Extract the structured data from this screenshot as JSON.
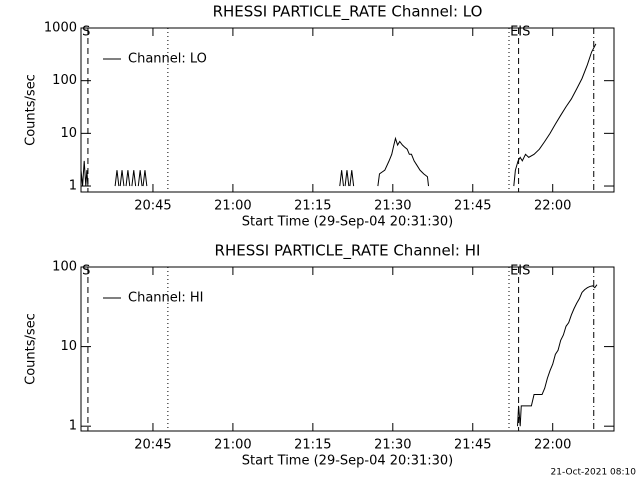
{
  "chart_data": [
    {
      "type": "line",
      "title": "RHESSI PARTICLE_RATE Channel: LO",
      "xlabel": "Start Time (29-Sep-04 20:31:30)",
      "ylabel": "Counts/sec",
      "log_y": true,
      "legend": "upper left",
      "xlim": [
        0,
        100
      ],
      "ylim": [
        0.77,
        1000
      ],
      "xticks": [
        {
          "value": 13.5,
          "label": "20:45"
        },
        {
          "value": 28.5,
          "label": "21:00"
        },
        {
          "value": 43.5,
          "label": "21:15"
        },
        {
          "value": 58.5,
          "label": "21:30"
        },
        {
          "value": 73.5,
          "label": "21:45"
        },
        {
          "value": 88.5,
          "label": "22:00"
        }
      ],
      "yticks": [
        1,
        10,
        100,
        1000
      ],
      "markers": [
        {
          "x": 1.3,
          "style": "dashed"
        },
        {
          "x": 16.3,
          "style": "dotted"
        },
        {
          "x": 80.3,
          "style": "dotted"
        },
        {
          "x": 82.1,
          "style": "dashed"
        },
        {
          "x": 96.2,
          "style": "dashdot"
        }
      ],
      "annotations": [
        {
          "text": "S",
          "x": 0.2
        },
        {
          "text": "EIS",
          "x": 80.5
        }
      ],
      "x": [
        0,
        0.3,
        0.6,
        0.9,
        1.1,
        1.3,
        1.5,
        6.4,
        6.75,
        7.1,
        7.2,
        7.35,
        7.7,
        8.05,
        8.3,
        8.45,
        8.8,
        9.15,
        9.4,
        9.55,
        9.9,
        10.25,
        10.5,
        10.75,
        11.1,
        11.45,
        11.55,
        11.65,
        12,
        12.35,
        12.6,
        48.55,
        48.9,
        49.25,
        49.4,
        49.55,
        49.9,
        50.25,
        50.35,
        50.45,
        50.8,
        51.15,
        51.5,
        55.7,
        56,
        57,
        57.8,
        58.3,
        58.7,
        59,
        59.4,
        59.8,
        60.3,
        60.7,
        61.2,
        61.6,
        62,
        62.5,
        63,
        63.6,
        64.3,
        65,
        65.2,
        65.5,
        81.2,
        81.5,
        82,
        82.4,
        82.8,
        83.4,
        84,
        85,
        86,
        87,
        88,
        89,
        90,
        91,
        92,
        93,
        94,
        95,
        95.8,
        96.6
      ],
      "series": [
        {
          "name": "Channel: LO",
          "color": "#000000",
          "values": [
            2,
            1,
            3,
            1,
            2,
            1,
            null,
            1,
            2,
            1,
            null,
            1,
            2,
            1,
            null,
            1,
            2,
            1,
            null,
            1,
            2,
            1,
            null,
            1,
            2,
            1,
            null,
            1,
            2,
            1,
            null,
            1,
            2,
            1,
            null,
            1,
            2,
            1,
            null,
            1,
            2,
            1,
            null,
            1,
            1.7,
            2,
            3,
            4,
            6,
            8,
            6,
            7,
            6,
            5.5,
            5,
            4,
            4,
            3,
            2.5,
            2,
            1.7,
            1.5,
            1,
            null,
            1,
            2,
            3,
            3.5,
            3,
            4,
            3.5,
            4,
            5,
            7,
            10,
            15,
            22,
            32,
            45,
            70,
            110,
            200,
            350,
            500
          ]
        }
      ]
    },
    {
      "type": "line",
      "title": "RHESSI PARTICLE_RATE Channel: HI",
      "xlabel": "Start Time (29-Sep-04 20:31:30)",
      "ylabel": "Counts/sec",
      "log_y": true,
      "legend": "upper left",
      "xlim": [
        0,
        100
      ],
      "ylim": [
        0.87,
        100
      ],
      "xticks": [
        {
          "value": 13.5,
          "label": "20:45"
        },
        {
          "value": 28.5,
          "label": "21:00"
        },
        {
          "value": 43.5,
          "label": "21:15"
        },
        {
          "value": 58.5,
          "label": "21:30"
        },
        {
          "value": 73.5,
          "label": "21:45"
        },
        {
          "value": 88.5,
          "label": "22:00"
        }
      ],
      "yticks": [
        1,
        10,
        100
      ],
      "markers": [
        {
          "x": 1.3,
          "style": "dashed"
        },
        {
          "x": 16.3,
          "style": "dotted"
        },
        {
          "x": 80.3,
          "style": "dotted"
        },
        {
          "x": 82.1,
          "style": "dashed"
        },
        {
          "x": 96.2,
          "style": "dashdot"
        }
      ],
      "annotations": [
        {
          "text": "S",
          "x": 0.2
        },
        {
          "text": "EIS",
          "x": 80.5
        }
      ],
      "x": [
        81.9,
        82.1,
        82.4,
        82.6,
        84.5,
        85,
        86.5,
        87,
        87.5,
        88,
        88.5,
        89,
        89.5,
        90,
        90.5,
        91,
        91.5,
        92,
        92.5,
        93,
        93.5,
        94,
        94.5,
        95,
        95.5,
        96,
        96.4,
        96.8
      ],
      "series": [
        {
          "name": "Channel: HI",
          "color": "#000000",
          "values": [
            1,
            1.8,
            1,
            1.8,
            1.8,
            2.5,
            2.5,
            3,
            4,
            5,
            6,
            8,
            9,
            12,
            14,
            18,
            20,
            25,
            30,
            35,
            40,
            48,
            52,
            55,
            57,
            58,
            55,
            60
          ]
        }
      ]
    }
  ],
  "footer": "21-Oct-2021 08:10"
}
